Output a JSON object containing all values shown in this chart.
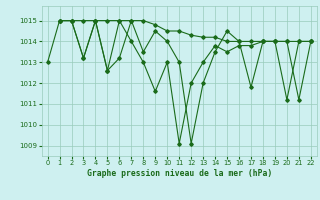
{
  "title": "Graphe pression niveau de la mer (hPa)",
  "bg_color": "#cef0f0",
  "grid_color": "#99ccbb",
  "line_color": "#1a6b1a",
  "xlim": [
    -0.5,
    22.5
  ],
  "ylim": [
    1008.5,
    1015.7
  ],
  "yticks": [
    1009,
    1010,
    1011,
    1012,
    1013,
    1014,
    1015
  ],
  "xticks": [
    0,
    1,
    2,
    3,
    4,
    5,
    6,
    7,
    8,
    9,
    10,
    11,
    12,
    13,
    14,
    15,
    16,
    17,
    18,
    19,
    20,
    21,
    22
  ],
  "series1_x": [
    0,
    1,
    2,
    3,
    4,
    5,
    6,
    7,
    8,
    9,
    10,
    11,
    12,
    13,
    14,
    15,
    16,
    17,
    18,
    19,
    20,
    21,
    22
  ],
  "series1_y": [
    1013.0,
    1015.0,
    1015.0,
    1013.2,
    1015.0,
    1012.6,
    1015.0,
    1014.0,
    1013.0,
    1011.6,
    1013.0,
    1009.1,
    1012.0,
    1013.0,
    1013.8,
    1013.5,
    1013.8,
    1013.8,
    1014.0,
    1014.0,
    1014.0,
    1011.2,
    1014.0
  ],
  "series2_x": [
    1,
    2,
    3,
    4,
    5,
    6,
    7,
    8,
    9,
    10,
    11,
    12,
    13,
    14,
    15,
    16,
    17,
    18,
    19,
    20,
    21,
    22
  ],
  "series2_y": [
    1015.0,
    1015.0,
    1015.0,
    1015.0,
    1015.0,
    1015.0,
    1015.0,
    1015.0,
    1014.8,
    1014.5,
    1014.5,
    1014.3,
    1014.2,
    1014.2,
    1014.0,
    1014.0,
    1014.0,
    1014.0,
    1014.0,
    1014.0,
    1014.0,
    1014.0
  ],
  "series3_x": [
    1,
    2,
    3,
    4,
    5,
    6,
    7,
    8,
    9,
    10,
    11,
    12,
    13,
    14,
    15,
    16,
    17,
    18,
    19,
    20,
    21,
    22
  ],
  "series3_y": [
    1015.0,
    1015.0,
    1013.2,
    1015.0,
    1012.6,
    1013.2,
    1015.0,
    1013.5,
    1014.5,
    1014.0,
    1013.0,
    1009.1,
    1012.0,
    1013.5,
    1014.5,
    1014.0,
    1011.8,
    1014.0,
    1014.0,
    1011.2,
    1014.0,
    1014.0
  ]
}
